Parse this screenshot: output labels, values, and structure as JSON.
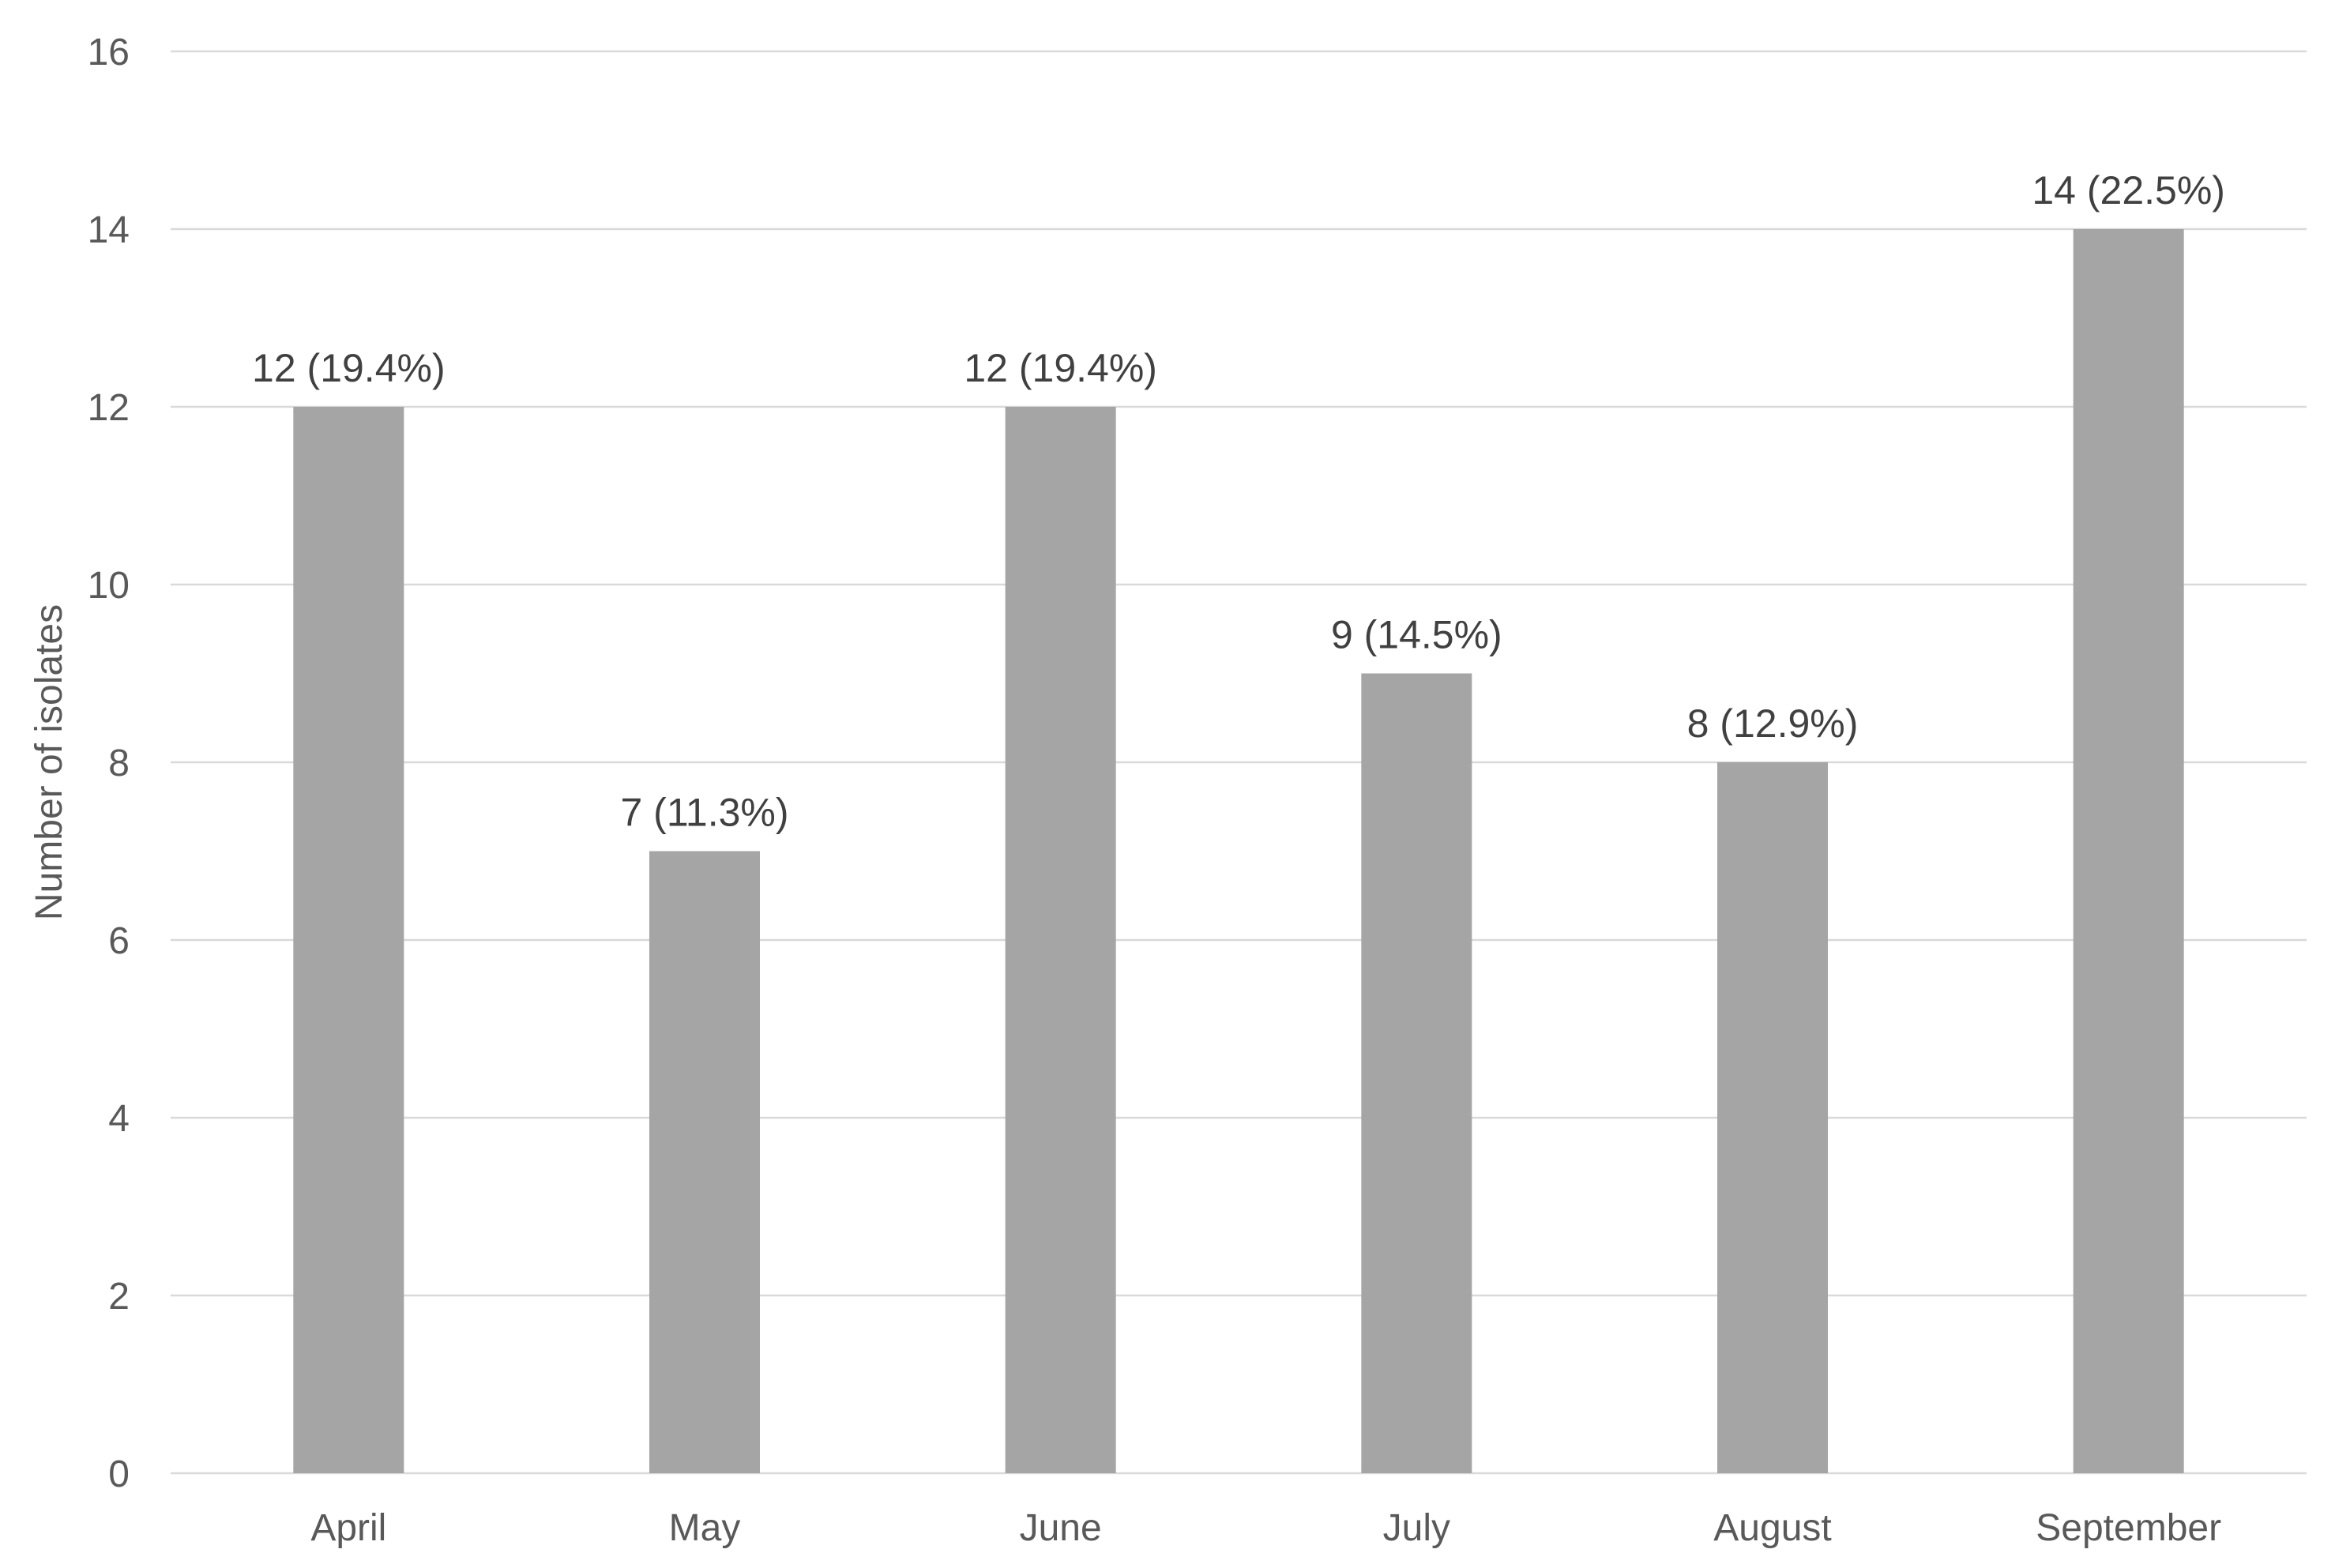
{
  "chart_data": {
    "type": "bar",
    "categories": [
      "April",
      "May",
      "June",
      "July",
      "August",
      "September"
    ],
    "values": [
      12,
      7,
      12,
      9,
      8,
      14
    ],
    "data_labels": [
      "12 (19.4%)",
      "7 (11.3%)",
      "12 (19.4%)",
      "9 (14.5%)",
      "8 (12.9%)",
      "14 (22.5%)"
    ],
    "title": "",
    "xlabel": "",
    "ylabel": "Number of isolates",
    "ylim": [
      0,
      16
    ],
    "yticks": [
      0,
      2,
      4,
      6,
      8,
      10,
      12,
      14,
      16
    ],
    "grid": true,
    "legend": "none",
    "bar_color": "#a5a5a5"
  }
}
